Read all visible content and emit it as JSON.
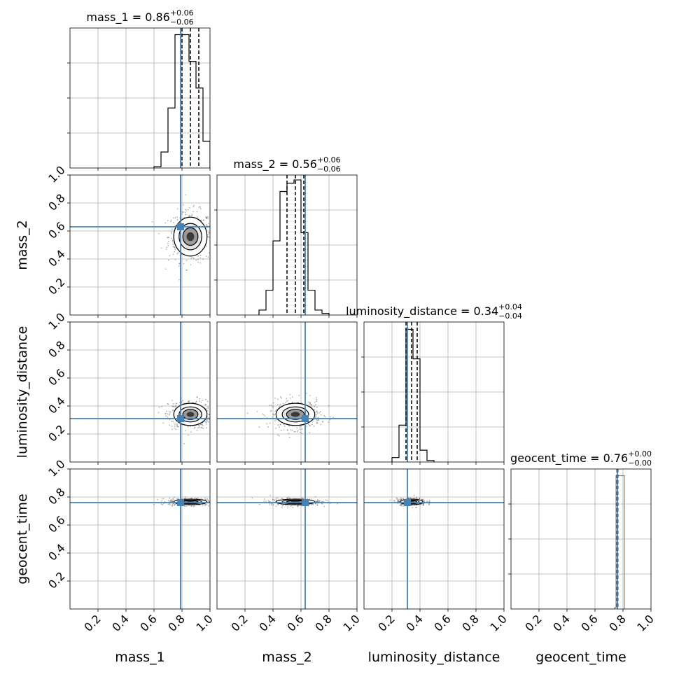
{
  "chart_data": {
    "type": "corner",
    "parameters": [
      "mass_1",
      "mass_2",
      "luminosity_distance",
      "geocent_time"
    ],
    "axis_range": [
      0,
      1
    ],
    "tick_labels": [
      "0.2",
      "0.4",
      "0.6",
      "0.8",
      "1.0"
    ],
    "truths": [
      0.79,
      0.63,
      0.31,
      0.76
    ],
    "truth_color": "#4682b4",
    "grid": true,
    "titles": [
      {
        "param": "mass_1",
        "prefix": "mass_1 = ",
        "median": "0.86",
        "plus": "+0.06",
        "minus": "−0.06"
      },
      {
        "param": "mass_2",
        "prefix": "mass_2 = ",
        "median": "0.56",
        "plus": "+0.06",
        "minus": "−0.06"
      },
      {
        "param": "luminosity_distance",
        "prefix": "luminosity_distance = ",
        "median": "0.34",
        "plus": "+0.04",
        "minus": "−0.04"
      },
      {
        "param": "geocent_time",
        "prefix": "geocent_time = ",
        "median": "0.76",
        "plus": "+0.00",
        "minus": "−0.00"
      }
    ],
    "quantiles": [
      [
        0.8,
        0.86,
        0.92
      ],
      [
        0.5,
        0.56,
        0.62
      ],
      [
        0.3,
        0.34,
        0.38
      ],
      [
        0.757,
        0.76,
        0.763
      ]
    ],
    "histograms": [
      {
        "edges": [
          0.6,
          0.65,
          0.7,
          0.75,
          0.8,
          0.85,
          0.9,
          0.95,
          1.0
        ],
        "values": [
          0.01,
          0.12,
          0.45,
          1.0,
          1.0,
          0.8,
          0.6,
          0.2
        ],
        "ylim": [
          0,
          1.05
        ]
      },
      {
        "edges": [
          0.3,
          0.35,
          0.4,
          0.45,
          0.5,
          0.55,
          0.6,
          0.65,
          0.7,
          0.75,
          0.8
        ],
        "values": [
          0.03,
          0.15,
          0.45,
          0.75,
          0.8,
          0.82,
          0.5,
          0.15,
          0.03,
          0.01
        ],
        "ylim": [
          0,
          0.85
        ]
      },
      {
        "edges": [
          0.2,
          0.25,
          0.3,
          0.35,
          0.4,
          0.45,
          0.5
        ],
        "values": [
          0.03,
          0.25,
          0.9,
          0.7,
          0.08,
          0.01
        ],
        "ylim": [
          0,
          0.95
        ]
      },
      {
        "edges": [
          0.74,
          0.75,
          0.76,
          0.77,
          0.78,
          0.79,
          0.8,
          0.81
        ],
        "values": [
          0.01,
          1.0,
          1.0,
          1.0,
          1.0,
          1.0,
          1.0
        ],
        "ylim": [
          0,
          1.05
        ]
      }
    ],
    "density_2d": [
      {
        "x": "mass_1",
        "y": "mass_2",
        "cx": 0.86,
        "cy": 0.56,
        "sx": 0.06,
        "sy": 0.07
      },
      {
        "x": "mass_1",
        "y": "luminosity_distance",
        "cx": 0.86,
        "cy": 0.34,
        "sx": 0.06,
        "sy": 0.04
      },
      {
        "x": "mass_2",
        "y": "luminosity_distance",
        "cx": 0.56,
        "cy": 0.34,
        "sx": 0.07,
        "sy": 0.04
      },
      {
        "x": "mass_1",
        "y": "geocent_time",
        "cx": 0.86,
        "cy": 0.765,
        "sx": 0.06,
        "sy": 0.01
      },
      {
        "x": "mass_2",
        "y": "geocent_time",
        "cx": 0.56,
        "cy": 0.765,
        "sx": 0.07,
        "sy": 0.01
      },
      {
        "x": "luminosity_distance",
        "y": "geocent_time",
        "cx": 0.34,
        "cy": 0.765,
        "sx": 0.04,
        "sy": 0.01
      }
    ]
  }
}
